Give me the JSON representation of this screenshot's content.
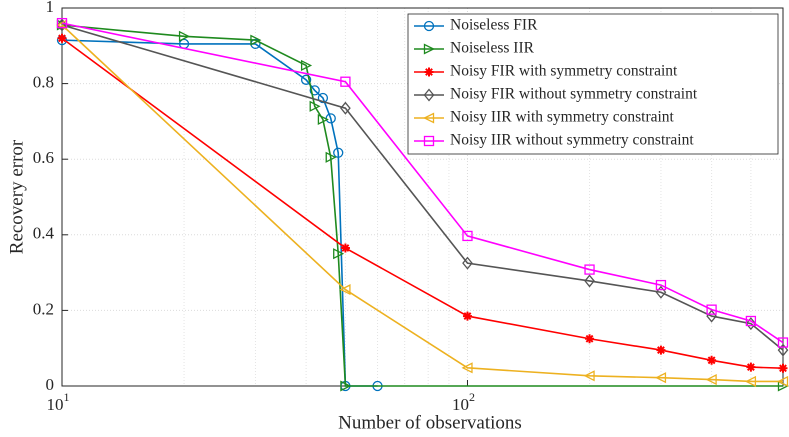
{
  "chart_data": {
    "type": "line",
    "xlabel": "Number of observations",
    "ylabel": "Recovery error",
    "xscale": "log",
    "xlim": [
      10,
      600
    ],
    "ylim": [
      0,
      1
    ],
    "xticks": [
      {
        "value": 10,
        "label": "10^1"
      },
      {
        "value": 100,
        "label": "10^2"
      }
    ],
    "xminorticks": [
      20,
      30,
      40,
      50,
      60,
      70,
      80,
      90,
      200,
      300,
      400,
      500
    ],
    "yticks": [
      0,
      0.2,
      0.4,
      0.6,
      0.8,
      1
    ],
    "grid": true,
    "legend": "upper right",
    "series": [
      {
        "name": "Noiseless FIR",
        "color": "#0072bd",
        "marker": "circle",
        "x": [
          10,
          20,
          30,
          40,
          42,
          44,
          46,
          48,
          50,
          60
        ],
        "values": [
          0.915,
          0.905,
          0.905,
          0.81,
          0.782,
          0.762,
          0.708,
          0.617,
          0.0,
          0.0
        ]
      },
      {
        "name": "Noiseless IIR",
        "color": "#1f8a1f",
        "marker": "triangle-right",
        "x": [
          10,
          20,
          30,
          40,
          42,
          44,
          46,
          48,
          50,
          600
        ],
        "values": [
          0.955,
          0.925,
          0.915,
          0.848,
          0.74,
          0.705,
          0.605,
          0.35,
          0.0,
          0.0
        ]
      },
      {
        "name": "Noisy FIR with symmetry constraint",
        "color": "#ff0000",
        "marker": "star",
        "x": [
          10,
          50,
          100,
          200,
          300,
          400,
          500,
          600
        ],
        "values": [
          0.92,
          0.365,
          0.185,
          0.125,
          0.095,
          0.068,
          0.05,
          0.047
        ]
      },
      {
        "name": "Noisy FIR without symmetry constraint",
        "color": "#555555",
        "marker": "diamond",
        "x": [
          10,
          50,
          100,
          200,
          300,
          400,
          500,
          600
        ],
        "values": [
          0.955,
          0.735,
          0.325,
          0.278,
          0.248,
          0.185,
          0.165,
          0.095
        ]
      },
      {
        "name": "Noisy IIR with symmetry constraint",
        "color": "#edb120",
        "marker": "triangle-left",
        "x": [
          10,
          50,
          100,
          200,
          300,
          400,
          500,
          600
        ],
        "values": [
          0.955,
          0.255,
          0.048,
          0.027,
          0.022,
          0.017,
          0.012,
          0.012
        ]
      },
      {
        "name": "Noisy IIR without symmetry constraint",
        "color": "#ff00ff",
        "marker": "square",
        "x": [
          10,
          50,
          100,
          200,
          300,
          400,
          500,
          600
        ],
        "values": [
          0.96,
          0.805,
          0.397,
          0.308,
          0.267,
          0.202,
          0.172,
          0.115
        ]
      }
    ]
  }
}
